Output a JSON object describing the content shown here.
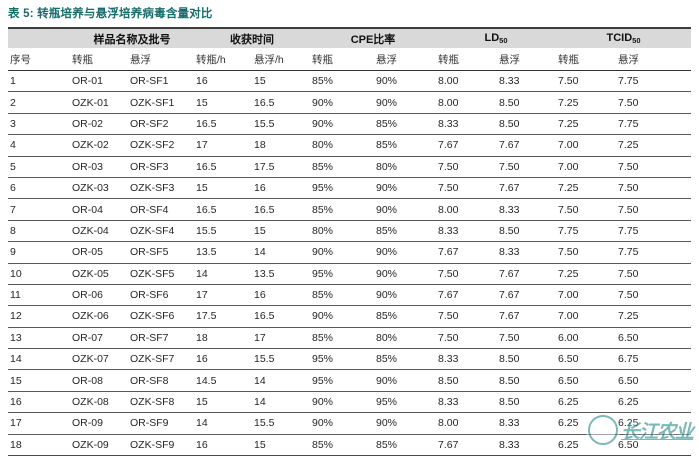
{
  "page": {
    "title": "表 5: 转瓶培养与悬浮培养病毒含量对比"
  },
  "colors": {
    "title_teal": "#176b6b",
    "header_band_gray": "#d9d9d9",
    "heavy_rule": "#3d3d3d",
    "row_rule": "#5a5a5a",
    "watermark_teal": "#2e8c8c"
  },
  "table": {
    "column_groups": [
      {
        "label": "",
        "sub": "",
        "span": 1
      },
      {
        "label": "样品名称及批号",
        "sub": "",
        "span": 2
      },
      {
        "label": "收获时间",
        "sub": "",
        "span": 2
      },
      {
        "label": "CPE比率",
        "sub": "",
        "span": 2
      },
      {
        "label": "LD",
        "sub": "50",
        "span": 2
      },
      {
        "label": "TCID",
        "sub": "50",
        "span": 2
      }
    ],
    "sub_headers": [
      "序号",
      "转瓶",
      "悬浮",
      "转瓶/h",
      "悬浮/h",
      "转瓶",
      "悬浮",
      "转瓶",
      "悬浮",
      "转瓶",
      "悬浮"
    ],
    "rows": [
      [
        "1",
        "OR-01",
        "OR-SF1",
        "16",
        "15",
        "85%",
        "90%",
        "8.00",
        "8.33",
        "7.50",
        "7.75"
      ],
      [
        "2",
        "OZK-01",
        "OZK-SF1",
        "15",
        "16.5",
        "90%",
        "90%",
        "8.00",
        "8.50",
        "7.25",
        "7.50"
      ],
      [
        "3",
        "OR-02",
        "OR-SF2",
        "16.5",
        "15.5",
        "90%",
        "85%",
        "8.33",
        "8.50",
        "7.25",
        "7.75"
      ],
      [
        "4",
        "OZK-02",
        "OZK-SF2",
        "17",
        "18",
        "80%",
        "85%",
        "7.67",
        "7.67",
        "7.00",
        "7.25"
      ],
      [
        "5",
        "OR-03",
        "OR-SF3",
        "16.5",
        "17.5",
        "85%",
        "80%",
        "7.50",
        "7.50",
        "7.00",
        "7.50"
      ],
      [
        "6",
        "OZK-03",
        "OZK-SF3",
        "15",
        "16",
        "95%",
        "90%",
        "7.50",
        "7.67",
        "7.25",
        "7.50"
      ],
      [
        "7",
        "OR-04",
        "OR-SF4",
        "16.5",
        "16.5",
        "85%",
        "90%",
        "8.00",
        "8.33",
        "7.50",
        "7.50"
      ],
      [
        "8",
        "OZK-04",
        "OZK-SF4",
        "15.5",
        "15",
        "80%",
        "85%",
        "8.33",
        "8.50",
        "7.75",
        "7.75"
      ],
      [
        "9",
        "OR-05",
        "OR-SF5",
        "13.5",
        "14",
        "90%",
        "90%",
        "7.67",
        "8.33",
        "7.50",
        "7.75"
      ],
      [
        "10",
        "OZK-05",
        "OZK-SF5",
        "14",
        "13.5",
        "95%",
        "90%",
        "7.50",
        "7.67",
        "7.25",
        "7.50"
      ],
      [
        "11",
        "OR-06",
        "OR-SF6",
        "17",
        "16",
        "85%",
        "90%",
        "7.67",
        "7.67",
        "7.00",
        "7.50"
      ],
      [
        "12",
        "OZK-06",
        "OZK-SF6",
        "17.5",
        "16.5",
        "90%",
        "85%",
        "7.50",
        "7.67",
        "7.00",
        "7.25"
      ],
      [
        "13",
        "OR-07",
        "OR-SF7",
        "18",
        "17",
        "85%",
        "80%",
        "7.50",
        "7.50",
        "6.00",
        "6.50"
      ],
      [
        "14",
        "OZK-07",
        "OZK-SF7",
        "16",
        "15.5",
        "95%",
        "85%",
        "8.33",
        "8.50",
        "6.50",
        "6.75"
      ],
      [
        "15",
        "OR-08",
        "OR-SF8",
        "14.5",
        "14",
        "95%",
        "90%",
        "8.50",
        "8.50",
        "6.50",
        "6.50"
      ],
      [
        "16",
        "OZK-08",
        "OZK-SF8",
        "15",
        "14",
        "90%",
        "95%",
        "8.33",
        "8.50",
        "6.25",
        "6.25"
      ],
      [
        "17",
        "OR-09",
        "OR-SF9",
        "14",
        "15.5",
        "90%",
        "90%",
        "8.00",
        "8.33",
        "6.25",
        "6.25"
      ],
      [
        "18",
        "OZK-09",
        "OZK-SF9",
        "16",
        "15",
        "85%",
        "85%",
        "7.67",
        "8.33",
        "6.25",
        "6.50"
      ]
    ]
  },
  "watermark": {
    "label": "长江农业",
    "logo": "circle-logo"
  }
}
